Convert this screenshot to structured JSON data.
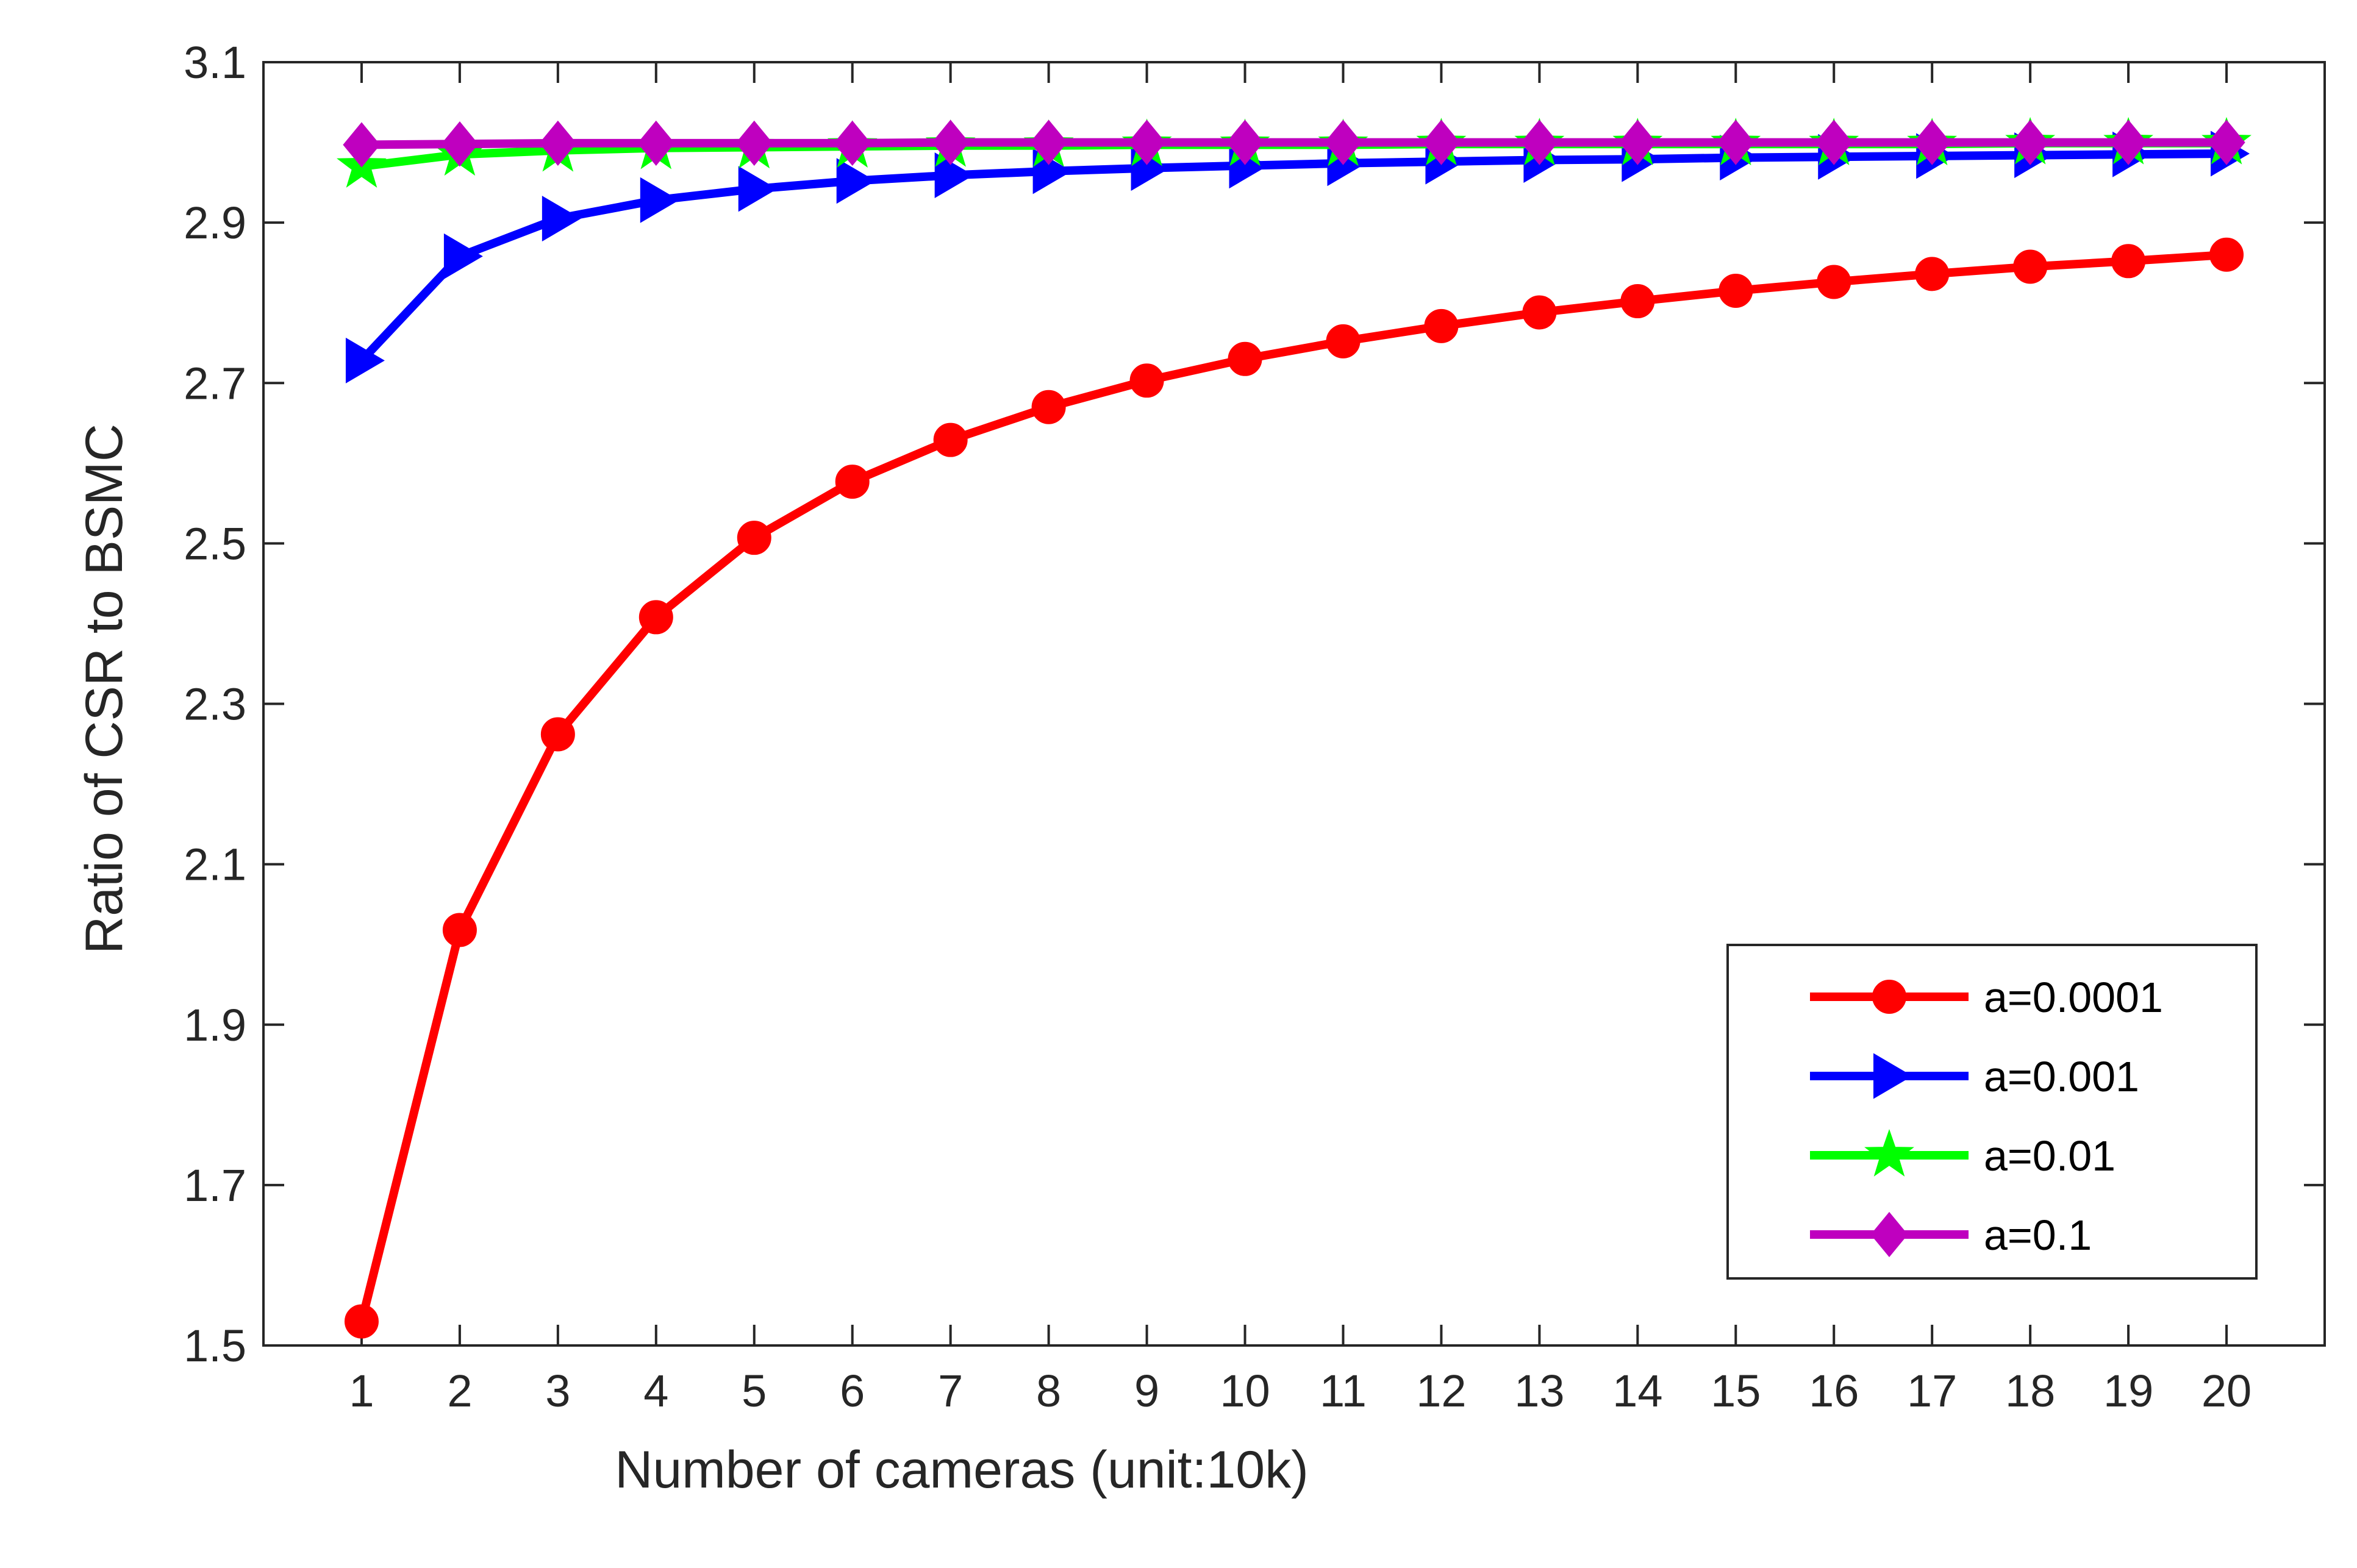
{
  "chart_data": {
    "type": "line",
    "title": "",
    "xlabel": "Number of cameras (unit:10k)",
    "ylabel": "Ratio of CSR to BSMC",
    "xlim": [
      0,
      21
    ],
    "ylim": [
      1.5,
      3.1
    ],
    "x_ticks": [
      "1",
      "2",
      "3",
      "4",
      "5",
      "6",
      "7",
      "8",
      "9",
      "10",
      "11",
      "12",
      "13",
      "14",
      "15",
      "16",
      "17",
      "18",
      "19",
      "20"
    ],
    "y_ticks": [
      "1.5",
      "1.7",
      "1.9",
      "2.1",
      "2.3",
      "2.5",
      "2.7",
      "2.9",
      "3.1"
    ],
    "grid": false,
    "legend_position": "bottom-right",
    "x": [
      1,
      2,
      3,
      4,
      5,
      6,
      7,
      8,
      9,
      10,
      11,
      12,
      13,
      14,
      15,
      16,
      17,
      18,
      19,
      20
    ],
    "series": [
      {
        "name": "a=0.0001",
        "color": "#ff0000",
        "marker": "circle",
        "values": [
          1.53,
          2.018,
          2.262,
          2.408,
          2.507,
          2.577,
          2.629,
          2.67,
          2.703,
          2.73,
          2.752,
          2.771,
          2.788,
          2.802,
          2.815,
          2.826,
          2.836,
          2.845,
          2.852,
          2.86
        ]
      },
      {
        "name": "a=0.001",
        "color": "#0000ff",
        "marker": "triangle-right",
        "values": [
          2.728,
          2.858,
          2.905,
          2.928,
          2.942,
          2.952,
          2.959,
          2.964,
          2.968,
          2.971,
          2.974,
          2.976,
          2.978,
          2.979,
          2.981,
          2.982,
          2.983,
          2.984,
          2.985,
          2.986
        ]
      },
      {
        "name": "a=0.01",
        "color": "#00ff00",
        "marker": "star",
        "values": [
          2.97,
          2.985,
          2.99,
          2.993,
          2.994,
          2.995,
          2.996,
          2.996,
          2.997,
          2.997,
          2.997,
          2.998,
          2.998,
          2.998,
          2.998,
          2.998,
          2.998,
          2.999,
          2.999,
          2.999
        ]
      },
      {
        "name": "a=0.1",
        "color": "#bf00bf",
        "marker": "diamond",
        "values": [
          2.997,
          2.998,
          2.999,
          2.999,
          2.999,
          2.999,
          3.0,
          3.0,
          3.0,
          3.0,
          3.0,
          3.0,
          3.0,
          3.0,
          3.0,
          3.0,
          3.0,
          3.0,
          3.0,
          3.0
        ]
      }
    ]
  }
}
